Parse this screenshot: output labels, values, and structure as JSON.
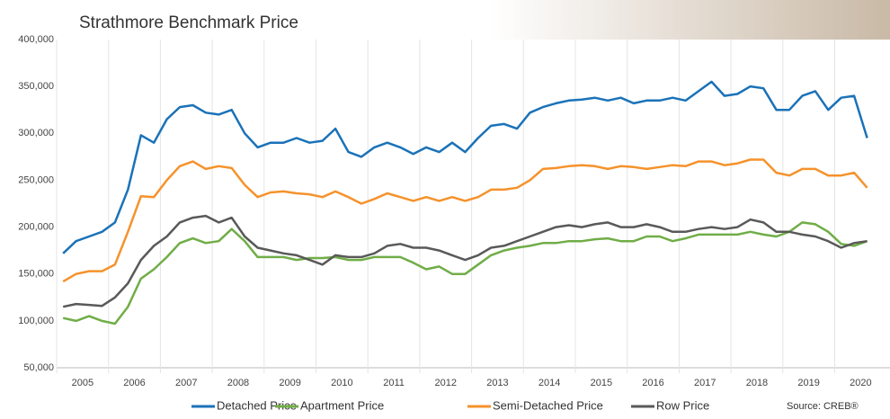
{
  "chart_data": {
    "type": "line",
    "title": "Strathmore Benchmark Price",
    "categories": [
      "2005",
      null,
      null,
      null,
      "2006",
      null,
      null,
      null,
      "2007",
      null,
      null,
      null,
      "2008",
      null,
      null,
      null,
      "2009",
      null,
      null,
      null,
      "2010",
      null,
      null,
      null,
      "2011",
      null,
      null,
      null,
      "2012",
      null,
      null,
      null,
      "2013",
      null,
      null,
      null,
      "2014",
      null,
      null,
      null,
      "2015",
      null,
      null,
      null,
      "2016",
      null,
      null,
      null,
      "2017",
      null,
      null,
      null,
      "2018",
      null,
      null,
      null,
      "2019",
      null,
      null,
      null,
      "2020",
      null,
      null
    ],
    "series": [
      {
        "name": "Detached Price",
        "color": "#1a72b8",
        "values": [
          172000,
          185000,
          190000,
          195000,
          205000,
          240000,
          298000,
          290000,
          315000,
          328000,
          330000,
          322000,
          320000,
          325000,
          300000,
          285000,
          290000,
          290000,
          295000,
          290000,
          292000,
          305000,
          280000,
          275000,
          285000,
          290000,
          285000,
          278000,
          285000,
          280000,
          290000,
          280000,
          295000,
          308000,
          310000,
          305000,
          322000,
          328000,
          332000,
          335000,
          336000,
          338000,
          335000,
          338000,
          332000,
          335000,
          335000,
          338000,
          335000,
          345000,
          355000,
          340000,
          342000,
          350000,
          348000,
          325000,
          325000,
          340000,
          345000,
          325000,
          338000,
          340000,
          295000
        ]
      },
      {
        "name": "Apartment Price",
        "color": "#70ad47",
        "values": [
          103000,
          100000,
          105000,
          100000,
          97000,
          115000,
          145000,
          155000,
          168000,
          183000,
          188000,
          183000,
          185000,
          198000,
          185000,
          168000,
          168000,
          168000,
          165000,
          167000,
          167000,
          168000,
          165000,
          165000,
          168000,
          168000,
          168000,
          162000,
          155000,
          158000,
          150000,
          150000,
          160000,
          170000,
          175000,
          178000,
          180000,
          183000,
          183000,
          185000,
          185000,
          187000,
          188000,
          185000,
          185000,
          190000,
          190000,
          185000,
          188000,
          192000,
          192000,
          192000,
          192000,
          195000,
          192000,
          190000,
          195000,
          205000,
          203000,
          195000,
          182000,
          180000,
          185000
        ]
      },
      {
        "name": "Semi-Detached Price",
        "color": "#f5922b",
        "values": [
          142000,
          150000,
          153000,
          153000,
          160000,
          195000,
          233000,
          232000,
          250000,
          265000,
          270000,
          262000,
          265000,
          263000,
          245000,
          232000,
          237000,
          238000,
          236000,
          235000,
          232000,
          238000,
          232000,
          225000,
          230000,
          236000,
          232000,
          228000,
          232000,
          228000,
          232000,
          228000,
          232000,
          240000,
          240000,
          242000,
          250000,
          262000,
          263000,
          265000,
          266000,
          265000,
          262000,
          265000,
          264000,
          262000,
          264000,
          266000,
          265000,
          270000,
          270000,
          266000,
          268000,
          272000,
          272000,
          258000,
          255000,
          262000,
          262000,
          255000,
          255000,
          258000,
          242000
        ]
      },
      {
        "name": "Row Price",
        "color": "#595959",
        "values": [
          115000,
          118000,
          117000,
          116000,
          125000,
          140000,
          165000,
          180000,
          190000,
          205000,
          210000,
          212000,
          205000,
          210000,
          190000,
          178000,
          175000,
          172000,
          170000,
          165000,
          160000,
          170000,
          168000,
          168000,
          172000,
          180000,
          182000,
          178000,
          178000,
          175000,
          170000,
          165000,
          170000,
          178000,
          180000,
          185000,
          190000,
          195000,
          200000,
          202000,
          200000,
          203000,
          205000,
          200000,
          200000,
          203000,
          200000,
          195000,
          195000,
          198000,
          200000,
          198000,
          200000,
          208000,
          205000,
          195000,
          195000,
          192000,
          190000,
          185000,
          178000,
          183000,
          185000
        ]
      }
    ],
    "ylim": [
      50000,
      400000
    ],
    "yticks": [
      {
        "value": 50000,
        "label": "50,000"
      },
      {
        "value": 100000,
        "label": "100,000"
      },
      {
        "value": 150000,
        "label": "150,000"
      },
      {
        "value": 200000,
        "label": "200,000"
      },
      {
        "value": 250000,
        "label": "250,000"
      },
      {
        "value": 300000,
        "label": "300,000"
      },
      {
        "value": 350000,
        "label": "350,000"
      },
      {
        "value": 400000,
        "label": "400,000"
      }
    ],
    "source": "Source: CREB®"
  }
}
